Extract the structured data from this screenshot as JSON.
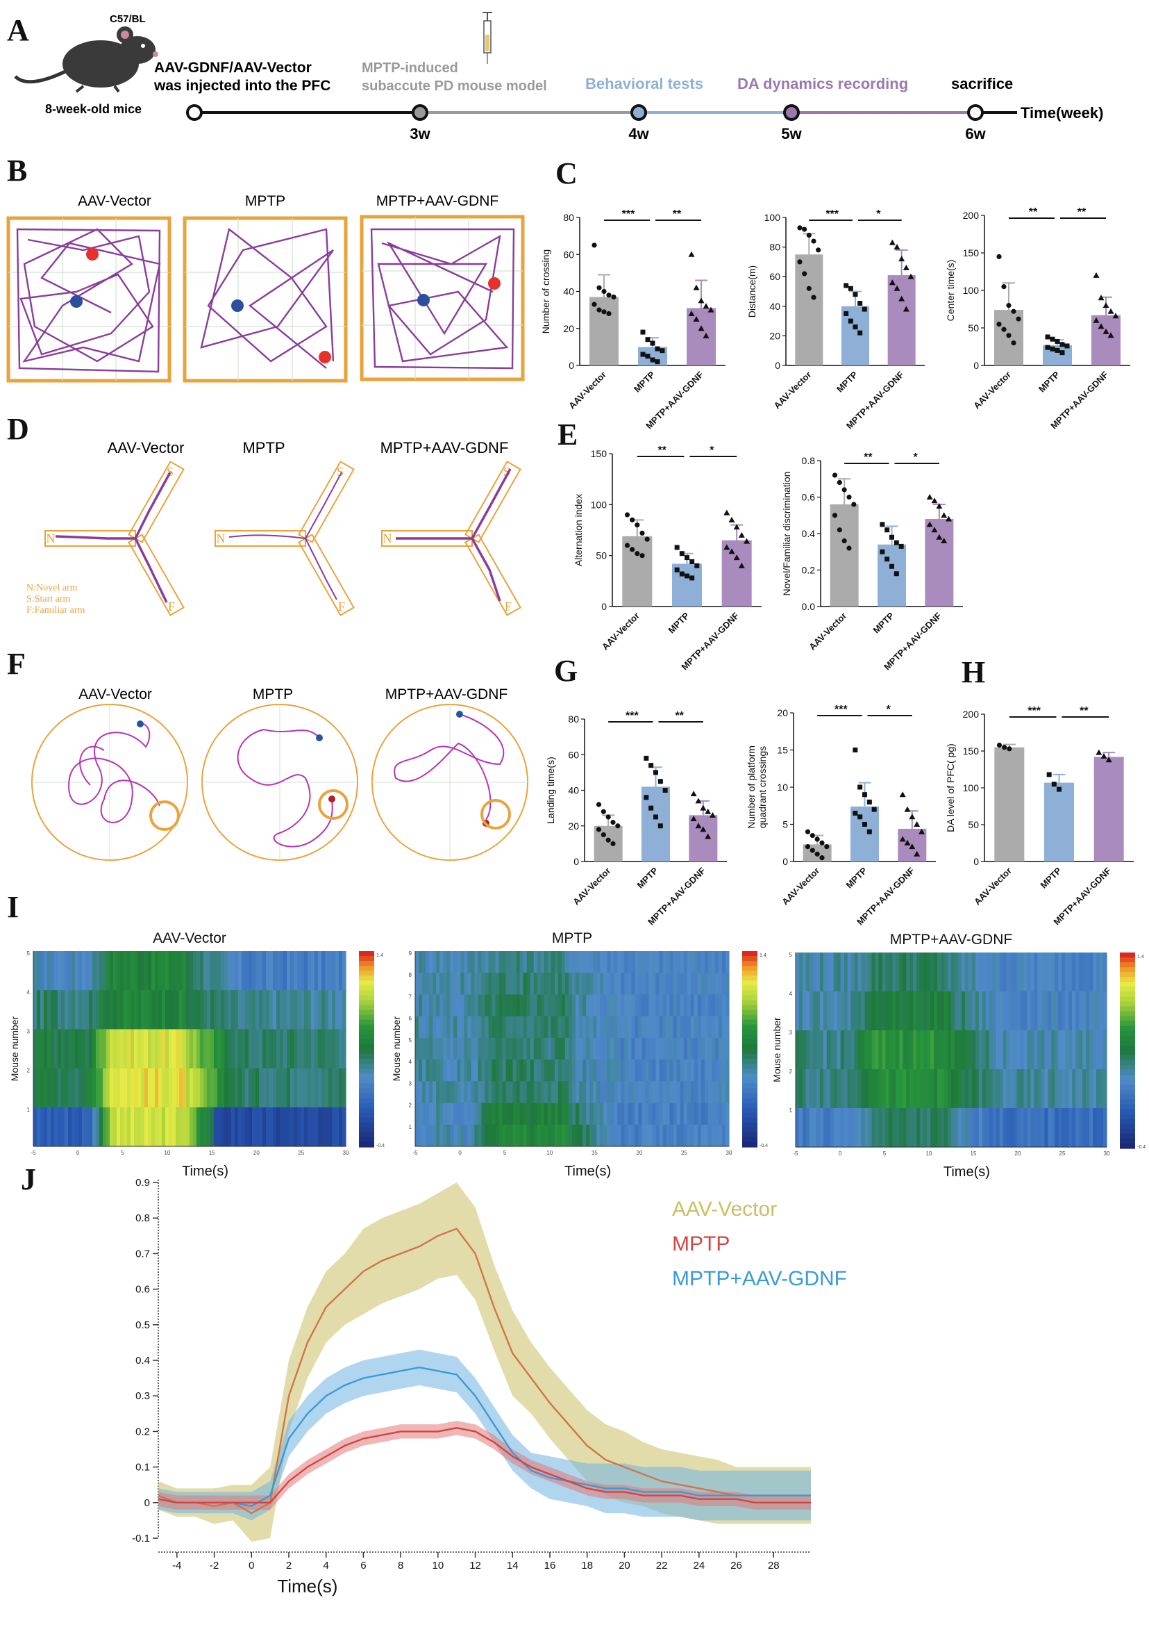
{
  "panel_labels": [
    "A",
    "B",
    "C",
    "D",
    "E",
    "F",
    "G",
    "H",
    "I",
    "J"
  ],
  "timeline": {
    "strain": "C57/BL",
    "age": "8-week-old mice",
    "inject_line1": "AAV-GDNF/AAV-Vector",
    "inject_line2": "was injected into the PFC",
    "mptp_line1": "MPTP-induced",
    "mptp_line2": "subaccute PD mouse model",
    "behavior": "Behavioral tests",
    "da": "DA dynamics recording",
    "sacrifice": "sacrifice",
    "axis": "Time(week)",
    "ticks": [
      "3w",
      "4w",
      "5w",
      "6w"
    ],
    "colors": {
      "gray": "#9a9a9a",
      "blue": "#8fb0d6",
      "purple": "#9b79b0"
    }
  },
  "groups": [
    "AAV-Vector",
    "MPTP",
    "MPTP+AAV-GDNF"
  ],
  "colors": {
    "vector": "#ababab",
    "mptp": "#8fb0d6",
    "gdnf": "#a98bbe",
    "track": "#8a3c9b",
    "orange": "#e8a33c"
  },
  "panel_D_legend": [
    "N:Novel arm",
    "S:Start arm",
    "F:Familiar arm"
  ],
  "maze_letters": {
    "N": "N",
    "S": "S",
    "F": "F"
  },
  "chart_data": [
    {
      "panel": "C",
      "type": "bar",
      "categories": [
        "AAV-Vector",
        "MPTP",
        "MPTP+AAV-GDNF"
      ],
      "values": [
        37,
        10,
        31
      ],
      "errors": [
        12,
        5,
        15
      ],
      "ylabel": "Number of crossing",
      "ylim": [
        0,
        80
      ],
      "yticks": [
        0,
        20,
        40,
        60,
        80
      ],
      "sig": [
        "***",
        "**"
      ],
      "points": [
        [
          65,
          42,
          40,
          38,
          37,
          33,
          30,
          29,
          28
        ],
        [
          18,
          14,
          12,
          9,
          8,
          6,
          5,
          3,
          2
        ],
        [
          60,
          42,
          35,
          32,
          30,
          28,
          25,
          20,
          16
        ]
      ]
    },
    {
      "panel": "C",
      "type": "bar",
      "categories": [
        "AAV-Vector",
        "MPTP",
        "MPTP+AAV-GDNF"
      ],
      "values": [
        75,
        40,
        61
      ],
      "errors": [
        14,
        10,
        17
      ],
      "ylabel": "Distance(m)",
      "ylim": [
        0,
        100
      ],
      "yticks": [
        0,
        20,
        40,
        60,
        80,
        100
      ],
      "sig": [
        "***",
        "*"
      ],
      "points": [
        [
          93,
          92,
          88,
          84,
          78,
          70,
          62,
          52,
          46
        ],
        [
          54,
          52,
          48,
          42,
          38,
          35,
          30,
          26,
          22
        ],
        [
          83,
          80,
          72,
          66,
          60,
          56,
          52,
          45,
          38
        ]
      ]
    },
    {
      "panel": "C",
      "type": "bar",
      "categories": [
        "AAV-Vector",
        "MPTP",
        "MPTP+AAV-GDNF"
      ],
      "values": [
        74,
        27,
        67
      ],
      "errors": [
        36,
        7,
        24
      ],
      "ylabel": "Center time(s)",
      "ylim": [
        0,
        200
      ],
      "yticks": [
        0,
        50,
        100,
        150,
        200
      ],
      "sig": [
        "**",
        "**"
      ],
      "points": [
        [
          145,
          105,
          80,
          72,
          62,
          55,
          48,
          40,
          30
        ],
        [
          38,
          35,
          32,
          28,
          26,
          24,
          22,
          20,
          17
        ],
        [
          120,
          90,
          80,
          72,
          66,
          60,
          52,
          45,
          40
        ]
      ]
    },
    {
      "panel": "E",
      "type": "bar",
      "categories": [
        "AAV-Vector",
        "MPTP",
        "MPTP+AAV-GDNF"
      ],
      "values": [
        69,
        42,
        65
      ],
      "errors": [
        16,
        10,
        15
      ],
      "ylabel": "Alternation index",
      "ylim": [
        0,
        150
      ],
      "yticks": [
        0,
        50,
        100,
        150
      ],
      "sig": [
        "**",
        "*"
      ],
      "points": [
        [
          90,
          85,
          80,
          72,
          66,
          60,
          56,
          52,
          50
        ],
        [
          58,
          52,
          48,
          44,
          40,
          36,
          32,
          30,
          28
        ],
        [
          92,
          85,
          78,
          70,
          64,
          58,
          54,
          48,
          40
        ]
      ]
    },
    {
      "panel": "E",
      "type": "bar",
      "categories": [
        "AAV-Vector",
        "MPTP",
        "MPTP+AAV-GDNF"
      ],
      "values": [
        0.56,
        0.34,
        0.48
      ],
      "errors": [
        0.14,
        0.1,
        0.08
      ],
      "ylabel": "Novel/Familiar discrimination",
      "ylim": [
        0,
        0.8
      ],
      "yticks": [
        0.0,
        0.2,
        0.4,
        0.6,
        0.8
      ],
      "sig": [
        "**",
        "*"
      ],
      "points": [
        [
          0.72,
          0.68,
          0.64,
          0.6,
          0.56,
          0.5,
          0.42,
          0.36,
          0.32
        ],
        [
          0.45,
          0.42,
          0.38,
          0.35,
          0.33,
          0.3,
          0.26,
          0.22,
          0.18
        ],
        [
          0.6,
          0.58,
          0.55,
          0.5,
          0.48,
          0.45,
          0.42,
          0.38,
          0.36
        ]
      ]
    },
    {
      "panel": "G",
      "type": "bar",
      "categories": [
        "AAV-Vector",
        "MPTP",
        "MPTP+AAV-GDNF"
      ],
      "values": [
        20,
        42,
        26
      ],
      "errors": [
        6,
        11,
        8
      ],
      "ylabel": "Landing time(s)",
      "ylim": [
        0,
        80
      ],
      "yticks": [
        0,
        20,
        40,
        60,
        80
      ],
      "sig": [
        "***",
        "**"
      ],
      "points": [
        [
          32,
          28,
          25,
          22,
          20,
          18,
          15,
          12,
          10
        ],
        [
          58,
          54,
          50,
          45,
          40,
          36,
          30,
          25,
          20
        ],
        [
          38,
          34,
          30,
          28,
          26,
          24,
          20,
          18,
          14
        ]
      ]
    },
    {
      "panel": "G",
      "type": "bar",
      "categories": [
        "AAV-Vector",
        "MPTP",
        "MPTP+AAV-GDNF"
      ],
      "values": [
        2.3,
        7.4,
        4.4
      ],
      "errors": [
        1.2,
        3.2,
        2.4
      ],
      "ylabel": "Number of platform quadrant crossings",
      "ylim": [
        0,
        20
      ],
      "yticks": [
        0,
        5,
        10,
        15,
        20
      ],
      "sig": [
        "***",
        "*"
      ],
      "points": [
        [
          4,
          3.5,
          3,
          2.5,
          2,
          2,
          1.5,
          1,
          0.5
        ],
        [
          15,
          10,
          9,
          8,
          7,
          6.5,
          6,
          5,
          4
        ],
        [
          9,
          7,
          6,
          5,
          4,
          3,
          2.5,
          2,
          1
        ]
      ]
    },
    {
      "panel": "H",
      "type": "bar",
      "categories": [
        "AAV-Vector",
        "MPTP",
        "MPTP+AAV-GDNF"
      ],
      "values": [
        155,
        107,
        142
      ],
      "errors": [
        4,
        11,
        6
      ],
      "ylabel": "DA level of PFC( pg)",
      "ylim": [
        0,
        200
      ],
      "yticks": [
        0,
        50,
        100,
        150,
        200
      ],
      "sig": [
        "***",
        "**"
      ],
      "points": [
        [
          158,
          155,
          153
        ],
        [
          118,
          105,
          98
        ],
        [
          148,
          143,
          138
        ]
      ]
    },
    {
      "panel": "I",
      "type": "heatmap",
      "titles": [
        "AAV-Vector",
        "MPTP",
        "MPTP+AAV-GDNF"
      ],
      "ylabel": "Mouse number",
      "xlabel": "Time(s)",
      "color_range": [
        -0.4,
        1.4
      ],
      "colorbar_labels": [
        "1.4",
        "-0.4"
      ],
      "rows_per_map": [
        5,
        9,
        5
      ],
      "ytick_labels": [
        [
          "5",
          "4",
          "3",
          "2",
          "1"
        ],
        [
          "9",
          "8",
          "7",
          "6",
          "5",
          "4",
          "3",
          "2",
          "1"
        ],
        [
          "5",
          "4",
          "3",
          "2",
          "1"
        ]
      ],
      "xtick_labels": [
        "-5",
        "0",
        "5",
        "10",
        "15",
        "20",
        "25",
        "30"
      ]
    },
    {
      "panel": "J",
      "type": "line",
      "title": "",
      "xlabel": "Time(s)",
      "ylabel": "",
      "xlim": [
        -5,
        30
      ],
      "ylim": [
        -0.1,
        0.9
      ],
      "xticks": [
        -4,
        -2,
        0,
        2,
        4,
        6,
        8,
        10,
        12,
        14,
        16,
        18,
        20,
        22,
        24,
        26,
        28
      ],
      "yticks": [
        -0.1,
        0,
        0.1,
        0.2,
        0.3,
        0.4,
        0.5,
        0.6,
        0.7,
        0.8,
        0.9
      ],
      "ytick_labels": [
        "-0.1",
        "0",
        "0.1",
        "0.2",
        "0.3",
        "0.4",
        "0.5",
        "0.6",
        "0.7",
        "0.8",
        "0.9"
      ],
      "legend_position": "top-right",
      "series": [
        {
          "name": "AAV-Vector",
          "color": "#c9c064",
          "band": "#c9c064",
          "label_color": "#c9c064",
          "x": [
            -5,
            -4,
            -3,
            -2,
            -1,
            0,
            1,
            2,
            3,
            4,
            5,
            6,
            7,
            8,
            9,
            10,
            11,
            12,
            13,
            14,
            15,
            16,
            17,
            18,
            19,
            20,
            21,
            22,
            23,
            24,
            25,
            26,
            27,
            28,
            29,
            30
          ],
          "y": [
            0.02,
            0.0,
            0.0,
            -0.01,
            0.0,
            -0.03,
            0.0,
            0.3,
            0.45,
            0.55,
            0.6,
            0.65,
            0.68,
            0.7,
            0.72,
            0.75,
            0.77,
            0.7,
            0.55,
            0.42,
            0.35,
            0.28,
            0.22,
            0.16,
            0.12,
            0.1,
            0.08,
            0.06,
            0.05,
            0.04,
            0.03,
            0.02,
            0.02,
            0.02,
            0.02,
            0.02
          ],
          "err": [
            0.04,
            0.04,
            0.04,
            0.05,
            0.05,
            0.08,
            0.1,
            0.1,
            0.1,
            0.1,
            0.1,
            0.12,
            0.12,
            0.12,
            0.12,
            0.12,
            0.13,
            0.13,
            0.12,
            0.12,
            0.1,
            0.1,
            0.1,
            0.1,
            0.1,
            0.1,
            0.09,
            0.09,
            0.09,
            0.09,
            0.09,
            0.08,
            0.08,
            0.08,
            0.08,
            0.08
          ]
        },
        {
          "name": "MPTP",
          "color": "#d24545",
          "band": "#e27a7a",
          "label_color": "#d24545",
          "x": [
            -5,
            -4,
            -3,
            -2,
            -1,
            0,
            1,
            2,
            3,
            4,
            5,
            6,
            7,
            8,
            9,
            10,
            11,
            12,
            13,
            14,
            15,
            16,
            17,
            18,
            19,
            20,
            21,
            22,
            23,
            24,
            25,
            26,
            27,
            28,
            29,
            30
          ],
          "y": [
            0.01,
            0.0,
            0.0,
            0.0,
            0.0,
            0.0,
            0.0,
            0.06,
            0.1,
            0.13,
            0.16,
            0.18,
            0.19,
            0.2,
            0.2,
            0.2,
            0.21,
            0.2,
            0.17,
            0.13,
            0.1,
            0.08,
            0.06,
            0.04,
            0.03,
            0.03,
            0.02,
            0.02,
            0.02,
            0.01,
            0.01,
            0.01,
            0.0,
            0.0,
            0.0,
            0.0
          ],
          "err": [
            0.02,
            0.02,
            0.02,
            0.02,
            0.02,
            0.02,
            0.02,
            0.02,
            0.02,
            0.02,
            0.02,
            0.02,
            0.02,
            0.02,
            0.02,
            0.02,
            0.02,
            0.02,
            0.02,
            0.02,
            0.02,
            0.02,
            0.02,
            0.02,
            0.02,
            0.02,
            0.02,
            0.02,
            0.02,
            0.02,
            0.02,
            0.02,
            0.02,
            0.02,
            0.02,
            0.02
          ]
        },
        {
          "name": "MPTP+AAV-GDNF",
          "color": "#3b9ad6",
          "band": "#6fb5e2",
          "label_color": "#3b9ad6",
          "x": [
            -5,
            -4,
            -3,
            -2,
            -1,
            0,
            1,
            2,
            3,
            4,
            5,
            6,
            7,
            8,
            9,
            10,
            11,
            12,
            13,
            14,
            15,
            16,
            17,
            18,
            19,
            20,
            21,
            22,
            23,
            24,
            25,
            26,
            27,
            28,
            29,
            30
          ],
          "y": [
            0.01,
            0.0,
            0.0,
            0.0,
            0.0,
            -0.01,
            0.02,
            0.18,
            0.25,
            0.3,
            0.33,
            0.35,
            0.36,
            0.37,
            0.38,
            0.37,
            0.36,
            0.3,
            0.22,
            0.14,
            0.09,
            0.07,
            0.06,
            0.05,
            0.04,
            0.04,
            0.03,
            0.03,
            0.03,
            0.02,
            0.02,
            0.02,
            0.02,
            0.02,
            0.02,
            0.02
          ],
          "err": [
            0.03,
            0.03,
            0.03,
            0.03,
            0.03,
            0.04,
            0.04,
            0.05,
            0.05,
            0.05,
            0.05,
            0.05,
            0.05,
            0.05,
            0.05,
            0.05,
            0.05,
            0.05,
            0.05,
            0.05,
            0.05,
            0.06,
            0.06,
            0.06,
            0.07,
            0.07,
            0.07,
            0.07,
            0.07,
            0.07,
            0.07,
            0.07,
            0.07,
            0.07,
            0.07,
            0.07
          ]
        }
      ]
    }
  ]
}
